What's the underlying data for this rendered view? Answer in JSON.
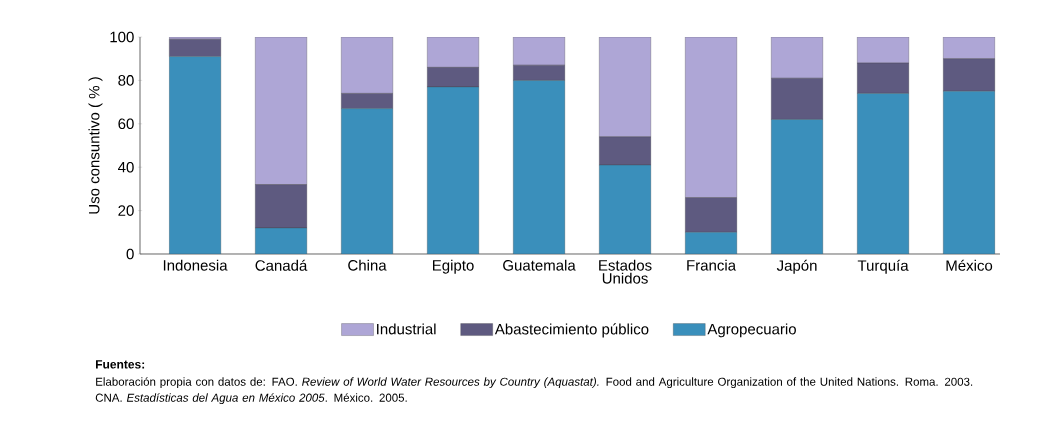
{
  "chart_data": {
    "type": "bar",
    "stacked": true,
    "ylabel": "Uso consuntivo ( % )",
    "categories": [
      "Indonesia",
      "Canadá",
      "China",
      "Egipto",
      "Guatemala",
      "Estados Unidos",
      "Francia",
      "Japón",
      "Turquía",
      "México"
    ],
    "series": [
      {
        "name": "Agropecuario",
        "color": "#3a8fbb",
        "values": [
          91,
          12,
          67,
          77,
          80,
          41,
          10,
          62,
          74,
          75
        ]
      },
      {
        "name": "Abastecimiento público",
        "color": "#5e5a80",
        "values": [
          8,
          20,
          7,
          9,
          7,
          13,
          16,
          19,
          14,
          15
        ]
      },
      {
        "name": "Industrial",
        "color": "#aea6d6",
        "values": [
          1,
          68,
          26,
          14,
          13,
          46,
          74,
          19,
          12,
          10
        ]
      }
    ],
    "ylim": [
      0,
      100
    ],
    "yticks": [
      0,
      20,
      40,
      60,
      80,
      100
    ],
    "legend": "bottom",
    "annotations": [
      "Fuentes:",
      "Elaboración propia con datos de: FAO. *Review of World Water Resources by Country (Aquastat).* Food and Agriculture Organization of the United Nations. Roma. 2003. CNA. *Estadísticas del Agua en México 2005*. México. 2005."
    ]
  }
}
